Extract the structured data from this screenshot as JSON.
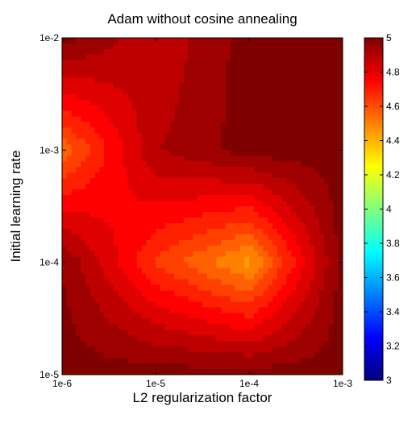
{
  "chart_data": {
    "type": "heatmap",
    "title": "Adam without cosine annealing",
    "xlabel": "L2 regularization factor",
    "ylabel": "Initial learning rate",
    "x_scale": "log",
    "y_scale": "log",
    "x": [
      1e-06,
      1e-05,
      0.0001,
      0.001
    ],
    "y": [
      1e-05,
      0.0001,
      0.001,
      0.01
    ],
    "x_tick_labels": [
      "1e-6",
      "1e-5",
      "1e-4",
      "1e-3"
    ],
    "y_tick_labels": [
      "1e-5",
      "1e-4",
      "1e-3",
      "1e-2"
    ],
    "z_rows_by_y": [
      [
        5.0,
        5.0,
        5.0,
        5.0
      ],
      [
        4.97,
        4.65,
        4.45,
        5.0
      ],
      [
        4.55,
        4.9,
        5.0,
        5.0
      ],
      [
        5.0,
        4.85,
        5.0,
        5.0
      ]
    ],
    "colorbar": {
      "colormap": "jet",
      "range": [
        3,
        5
      ],
      "ticks": [
        3,
        3.2,
        3.4,
        3.6,
        3.8,
        4,
        4.2,
        4.4,
        4.6,
        4.8,
        5
      ],
      "tick_labels": [
        "3",
        "3.2",
        "3.4",
        "3.6",
        "3.8",
        "4",
        "4.2",
        "4.4",
        "4.6",
        "4.8",
        "5"
      ]
    }
  }
}
